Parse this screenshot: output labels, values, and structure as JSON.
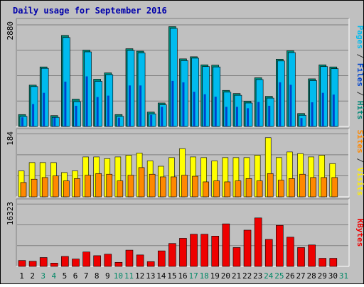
{
  "chart_data": {
    "type": "bar",
    "title": "Daily usage for September 2016",
    "days": [
      "1",
      "2",
      "3",
      "4",
      "5",
      "6",
      "7",
      "8",
      "9",
      "10",
      "11",
      "12",
      "13",
      "14",
      "15",
      "16",
      "17",
      "18",
      "19",
      "20",
      "21",
      "22",
      "23",
      "24",
      "25",
      "26",
      "27",
      "28",
      "29",
      "30",
      "31"
    ],
    "weekend_days": [
      "3",
      "4",
      "10",
      "11",
      "17",
      "18",
      "24",
      "25",
      "31"
    ],
    "panels": [
      {
        "id": "top",
        "ymax_label": "2880",
        "ymax": 2880,
        "right_labels": [
          {
            "text": "Pages",
            "color": "#00bbee"
          },
          {
            "text": " / ",
            "color": "#333333"
          },
          {
            "text": "Files",
            "color": "#0044cc"
          },
          {
            "text": " / ",
            "color": "#333333"
          },
          {
            "text": "Hits",
            "color": "#008877"
          }
        ],
        "series": [
          {
            "name": "Hits",
            "color": "#008877",
            "values": [
              340,
              1180,
              1700,
              310,
              2600,
              780,
              2180,
              1350,
              1530,
              340,
              2220,
              2150,
              410,
              670,
              2850,
              1930,
              1990,
              1760,
              1750,
              1030,
              940,
              720,
              1390,
              860,
              1920,
              2160,
              370,
              1360,
              1760,
              1700,
              0
            ]
          },
          {
            "name": "Files",
            "color": "#0044cc",
            "values": [
              260,
              640,
              960,
              250,
              1280,
              590,
              1430,
              840,
              880,
              250,
              1170,
              1170,
              330,
              560,
              1300,
              1260,
              990,
              920,
              850,
              560,
              560,
              520,
              700,
              590,
              1260,
              1190,
              240,
              690,
              960,
              910,
              0
            ]
          },
          {
            "name": "Pages",
            "color": "#00bbee",
            "values": [
              330,
              1180,
              1700,
              300,
              2580,
              750,
              2170,
              1330,
              1520,
              330,
              2210,
              2140,
              400,
              660,
              2840,
              1920,
              1990,
              1750,
              1740,
              1020,
              930,
              710,
              1380,
              850,
              1910,
              2150,
              360,
              1350,
              1750,
              1690,
              0
            ]
          }
        ]
      },
      {
        "id": "middle",
        "ymax_label": "184",
        "ymax": 184,
        "right_labels": [
          {
            "text": "Sites",
            "color": "#ff8800"
          },
          {
            "text": " / ",
            "color": "#333333"
          },
          {
            "text": "Visits",
            "color": "#ffee00"
          }
        ],
        "series": [
          {
            "name": "Visits",
            "color": "#ffff00",
            "values": [
              78,
              103,
              103,
              103,
              73,
              78,
              120,
              120,
              115,
              120,
              125,
              132,
              108,
              92,
              118,
              145,
              120,
              118,
              108,
              118,
              118,
              118,
              125,
              178,
              118,
              135,
              130,
              120,
              125,
              100,
              0
            ]
          },
          {
            "name": "Sites",
            "color": "#ff8800",
            "values": [
              43,
              53,
              58,
              63,
              48,
              55,
              65,
              70,
              68,
              48,
              65,
              88,
              68,
              60,
              60,
              65,
              62,
              45,
              48,
              45,
              48,
              55,
              48,
              70,
              50,
              55,
              68,
              58,
              58,
              58,
              0
            ]
          }
        ]
      },
      {
        "id": "bottom",
        "ymax_label": "16323",
        "ymax": 16323,
        "right_labels": [
          {
            "text": "KBytes",
            "color": "#ee0000"
          }
        ],
        "series": [
          {
            "name": "KBytes",
            "color": "#ee0000",
            "values": [
              1600,
              1400,
              2400,
              900,
              2700,
              2000,
              3900,
              2900,
              3300,
              1100,
              4400,
              3100,
              1300,
              4200,
              6200,
              7600,
              8700,
              8700,
              8200,
              11500,
              5100,
              9800,
              13100,
              7300,
              11100,
              7900,
              5100,
              5800,
              2200,
              2200,
              0
            ]
          }
        ]
      }
    ]
  }
}
